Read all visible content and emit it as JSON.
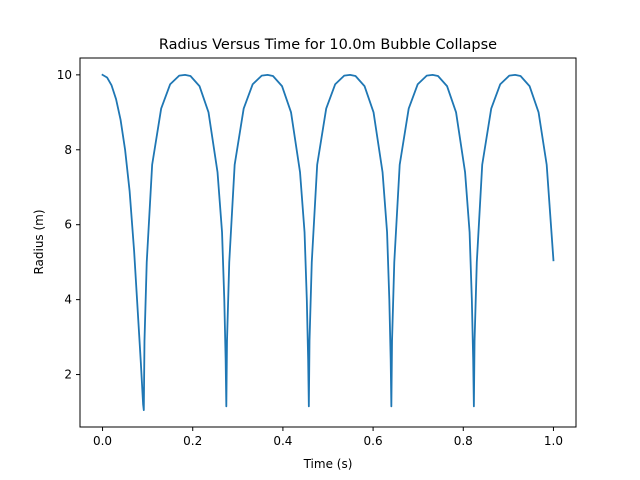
{
  "chart_data": {
    "type": "line",
    "title": "Radius Versus Time for 10.0m Bubble Collapse",
    "xlabel": "Time (s)",
    "ylabel": "Radius (m)",
    "xlim": [
      -0.05,
      1.05
    ],
    "ylim": [
      0.6,
      10.45
    ],
    "xticks": [
      0.0,
      0.2,
      0.4,
      0.6,
      0.8,
      1.0
    ],
    "xtick_labels": [
      "0.0",
      "0.2",
      "0.4",
      "0.6",
      "0.8",
      "1.0"
    ],
    "yticks": [
      2,
      4,
      6,
      8,
      10
    ],
    "ytick_labels": [
      "2",
      "4",
      "6",
      "8",
      "10"
    ],
    "grid": false,
    "series": [
      {
        "color": "#1f77b4",
        "x": [
          0.0,
          0.01,
          0.02,
          0.03,
          0.04,
          0.05,
          0.06,
          0.07,
          0.08,
          0.085,
          0.09,
          0.0915,
          0.093,
          0.098,
          0.11,
          0.13,
          0.15,
          0.17,
          0.183,
          0.195,
          0.215,
          0.235,
          0.255,
          0.265,
          0.27,
          0.273,
          0.2745,
          0.276,
          0.281,
          0.293,
          0.313,
          0.333,
          0.353,
          0.366,
          0.378,
          0.398,
          0.418,
          0.438,
          0.448,
          0.453,
          0.456,
          0.4575,
          0.459,
          0.464,
          0.476,
          0.496,
          0.516,
          0.536,
          0.549,
          0.561,
          0.581,
          0.601,
          0.621,
          0.631,
          0.636,
          0.639,
          0.6405,
          0.642,
          0.647,
          0.659,
          0.679,
          0.699,
          0.719,
          0.732,
          0.744,
          0.764,
          0.784,
          0.804,
          0.814,
          0.819,
          0.822,
          0.8235,
          0.825,
          0.83,
          0.842,
          0.862,
          0.882,
          0.902,
          0.915,
          0.927,
          0.947,
          0.967,
          0.985,
          1.0
        ],
        "values": [
          10.0,
          9.93,
          9.72,
          9.35,
          8.8,
          8.0,
          6.9,
          5.3,
          3.3,
          2.3,
          1.2,
          1.05,
          2.9,
          5.0,
          7.6,
          9.1,
          9.75,
          9.98,
          10.0,
          9.97,
          9.7,
          9.0,
          7.4,
          5.8,
          4.0,
          2.4,
          1.15,
          2.9,
          5.0,
          7.6,
          9.1,
          9.75,
          9.98,
          10.0,
          9.97,
          9.7,
          9.0,
          7.4,
          5.8,
          4.0,
          2.4,
          1.15,
          2.9,
          5.0,
          7.6,
          9.1,
          9.75,
          9.98,
          10.0,
          9.97,
          9.7,
          9.0,
          7.4,
          5.8,
          4.0,
          2.4,
          1.15,
          2.9,
          5.0,
          7.6,
          9.1,
          9.75,
          9.98,
          10.0,
          9.97,
          9.7,
          9.0,
          7.4,
          5.8,
          4.0,
          2.4,
          1.15,
          2.9,
          5.0,
          7.6,
          9.1,
          9.75,
          9.98,
          10.0,
          9.97,
          9.7,
          9.0,
          7.6,
          5.05
        ]
      }
    ]
  }
}
